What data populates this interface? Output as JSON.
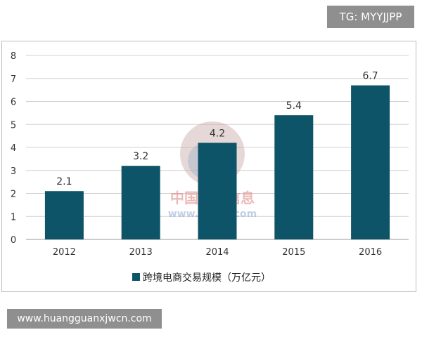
{
  "tg_badge": "TG: MYYJJPP",
  "url_badge": "www.huangguanxjwcn.com",
  "watermark": {
    "cn": "中国产业信息",
    "url": "www.chyxx.com"
  },
  "colors": {
    "bar": "#0d5468",
    "grid": "#d0d0d0",
    "axis": "#999999"
  },
  "chart_data": {
    "type": "bar",
    "categories": [
      "2012",
      "2013",
      "2014",
      "2015",
      "2016"
    ],
    "series": [
      {
        "name": "跨境电商交易规模（万亿元）",
        "values": [
          2.1,
          3.2,
          4.2,
          5.4,
          6.7
        ]
      }
    ],
    "data_labels": [
      "2.1",
      "3.2",
      "4.2",
      "5.4",
      "6.7"
    ],
    "y_ticks": [
      "0",
      "1",
      "2",
      "3",
      "4",
      "5",
      "6",
      "7",
      "8"
    ],
    "ylim": [
      0,
      8
    ],
    "grid": true,
    "legend_position": "bottom",
    "title": "",
    "xlabel": "",
    "ylabel": ""
  }
}
